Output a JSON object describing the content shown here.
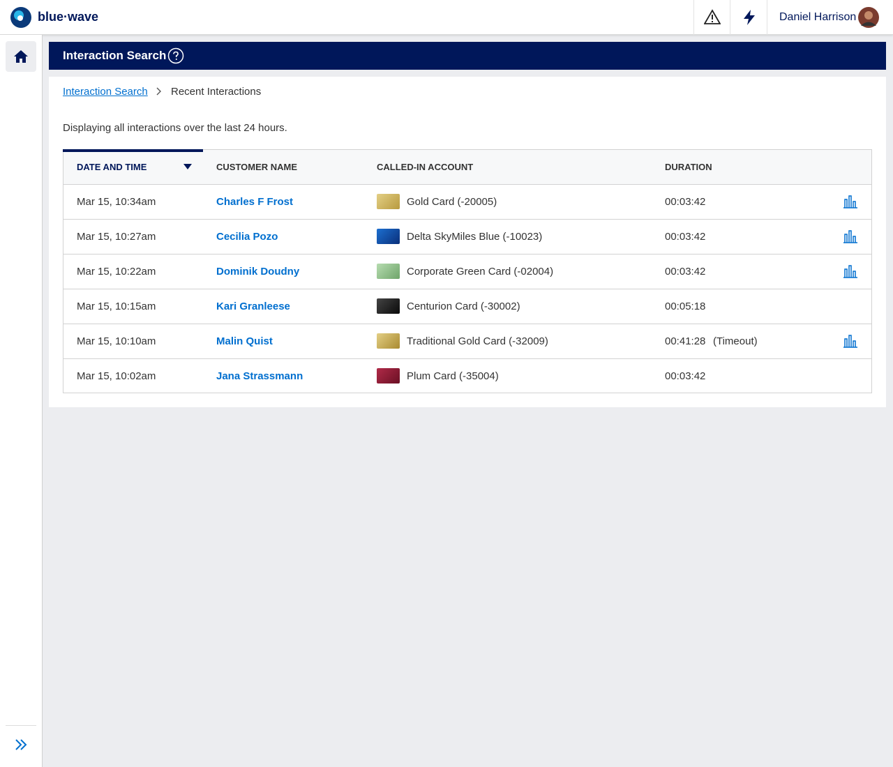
{
  "header": {
    "logo": "blue·wave",
    "user_name": "Daniel Harrison"
  },
  "page": {
    "title": "Interaction Search",
    "breadcrumb": [
      "Interaction Search",
      "Recent Interactions"
    ],
    "description": "Displaying all interactions over the last 24 hours."
  },
  "table": {
    "columns": [
      "DATE AND TIME",
      "CUSTOMER NAME",
      "CALLED-IN ACCOUNT",
      "DURATION"
    ],
    "rows": [
      {
        "date": "Mar 15, 10:34am",
        "customer": "Charles F Frost",
        "account": "Gold Card (-20005)",
        "duration": "00:03:42"
      },
      {
        "date": "Mar 15, 10:27am",
        "customer": "Cecilia Pozo",
        "account": "Delta SkyMiles Blue (-10023)",
        "duration": "00:03:42"
      },
      {
        "date": "Mar 15, 10:22am",
        "customer": "Dominik Doudny",
        "account": "Corporate Green Card (-02004)",
        "duration": "00:03:42"
      },
      {
        "date": "Mar 15, 10:15am",
        "customer": "Kari Granleese",
        "account": "Centurion Card (-30002)",
        "duration": "00:05:18"
      },
      {
        "date": "Mar 15, 10:10am",
        "customer": "Malin Quist",
        "account": "Traditional Gold Card (-32009)",
        "duration": "00:41:28",
        "note": "(Timeout)"
      },
      {
        "date": "Mar 15, 10:02am",
        "customer": "Jana Strassmann",
        "account": "Plum Card (-35004)",
        "duration": "00:03:42"
      }
    ]
  }
}
